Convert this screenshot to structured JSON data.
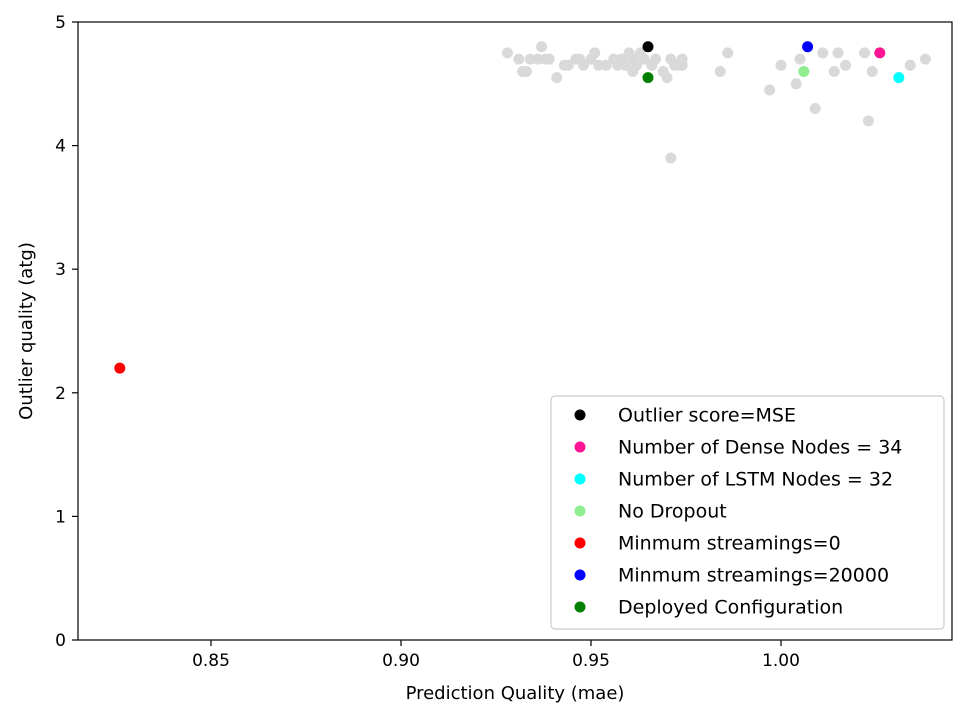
{
  "chart_data": {
    "type": "scatter",
    "title": "",
    "xlabel": "Prediction Quality (mae)",
    "ylabel": "Outlier quality (atg)",
    "xlim": [
      0.815,
      1.045
    ],
    "ylim": [
      0,
      5
    ],
    "xticks": [
      0.85,
      0.9,
      0.95,
      1.0
    ],
    "xtick_labels": [
      "0.85",
      "0.90",
      "0.95",
      "1.00"
    ],
    "yticks": [
      0,
      1,
      2,
      3,
      4,
      5
    ],
    "ytick_labels": [
      "0",
      "1",
      "2",
      "3",
      "4",
      "5"
    ],
    "grid": false,
    "legend_position": "lower-right",
    "background_points": {
      "color": "#d9d9d9",
      "points": [
        [
          0.928,
          4.75
        ],
        [
          0.931,
          4.7
        ],
        [
          0.932,
          4.6
        ],
        [
          0.933,
          4.6
        ],
        [
          0.934,
          4.7
        ],
        [
          0.936,
          4.7
        ],
        [
          0.937,
          4.8
        ],
        [
          0.938,
          4.7
        ],
        [
          0.939,
          4.7
        ],
        [
          0.941,
          4.55
        ],
        [
          0.943,
          4.65
        ],
        [
          0.944,
          4.65
        ],
        [
          0.946,
          4.7
        ],
        [
          0.947,
          4.7
        ],
        [
          0.948,
          4.65
        ],
        [
          0.95,
          4.7
        ],
        [
          0.951,
          4.75
        ],
        [
          0.952,
          4.65
        ],
        [
          0.954,
          4.65
        ],
        [
          0.956,
          4.7
        ],
        [
          0.957,
          4.65
        ],
        [
          0.958,
          4.7
        ],
        [
          0.959,
          4.65
        ],
        [
          0.96,
          4.75
        ],
        [
          0.961,
          4.7
        ],
        [
          0.961,
          4.6
        ],
        [
          0.962,
          4.65
        ],
        [
          0.963,
          4.75
        ],
        [
          0.964,
          4.7
        ],
        [
          0.966,
          4.65
        ],
        [
          0.967,
          4.7
        ],
        [
          0.969,
          4.6
        ],
        [
          0.97,
          4.55
        ],
        [
          0.971,
          4.7
        ],
        [
          0.971,
          3.9
        ],
        [
          0.972,
          4.65
        ],
        [
          0.973,
          4.65
        ],
        [
          0.974,
          4.7
        ],
        [
          0.974,
          4.65
        ],
        [
          0.984,
          4.6
        ],
        [
          0.986,
          4.75
        ],
        [
          0.997,
          4.45
        ],
        [
          1.0,
          4.65
        ],
        [
          1.004,
          4.5
        ],
        [
          1.005,
          4.7
        ],
        [
          1.009,
          4.3
        ],
        [
          1.011,
          4.75
        ],
        [
          1.014,
          4.6
        ],
        [
          1.015,
          4.75
        ],
        [
          1.017,
          4.65
        ],
        [
          1.022,
          4.75
        ],
        [
          1.023,
          4.2
        ],
        [
          1.024,
          4.6
        ],
        [
          1.034,
          4.65
        ],
        [
          1.038,
          4.7
        ]
      ]
    },
    "series": [
      {
        "name": "Outlier score=MSE",
        "color": "#000000",
        "points": [
          [
            0.965,
            4.8
          ]
        ]
      },
      {
        "name": "Number of Dense Nodes = 34",
        "color": "#ff1493",
        "points": [
          [
            1.026,
            4.75
          ]
        ]
      },
      {
        "name": "Number of LSTM Nodes = 32",
        "color": "#00ffff",
        "points": [
          [
            1.031,
            4.55
          ]
        ]
      },
      {
        "name": "No Dropout",
        "color": "#90ee90",
        "points": [
          [
            1.006,
            4.6
          ]
        ]
      },
      {
        "name": "Minmum streamings=0",
        "color": "#ff0000",
        "points": [
          [
            0.826,
            2.2
          ]
        ]
      },
      {
        "name": "Minmum streamings=20000",
        "color": "#0000ff",
        "points": [
          [
            1.007,
            4.8
          ]
        ]
      },
      {
        "name": "Deployed Configuration",
        "color": "#008000",
        "points": [
          [
            0.965,
            4.55
          ]
        ]
      }
    ]
  }
}
